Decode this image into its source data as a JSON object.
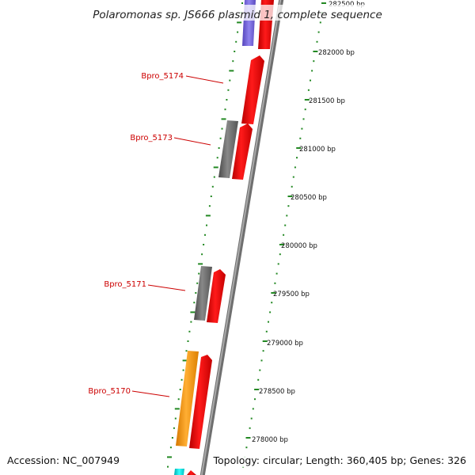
{
  "title": "Polaromonas sp. JS666 plasmid 1, complete sequence",
  "footer": {
    "accession": "Accession: NC_007949",
    "topology": "Topology: circular; Length: 360,405 bp; Genes: 326"
  },
  "gene_labels": [
    "Bpro_5174",
    "Bpro_5173",
    "Bpro_5171",
    "Bpro_5170"
  ],
  "scale_ticks": [
    "282500 bp",
    "282000 bp",
    "281500 bp",
    "281000 bp",
    "280500 bp",
    "280000 bp",
    "279500 bp",
    "279000 bp",
    "278500 bp",
    "278000 bp"
  ],
  "colors": {
    "backbone": "#8a8a8a",
    "gene_red": "#ee0000",
    "gene_grey": "#707070",
    "gene_orange": "#ff9900",
    "gene_purple": "#7766dd",
    "gene_cyan": "#00dddd",
    "tick_green": "#228822",
    "label_red": "#cc0000"
  }
}
